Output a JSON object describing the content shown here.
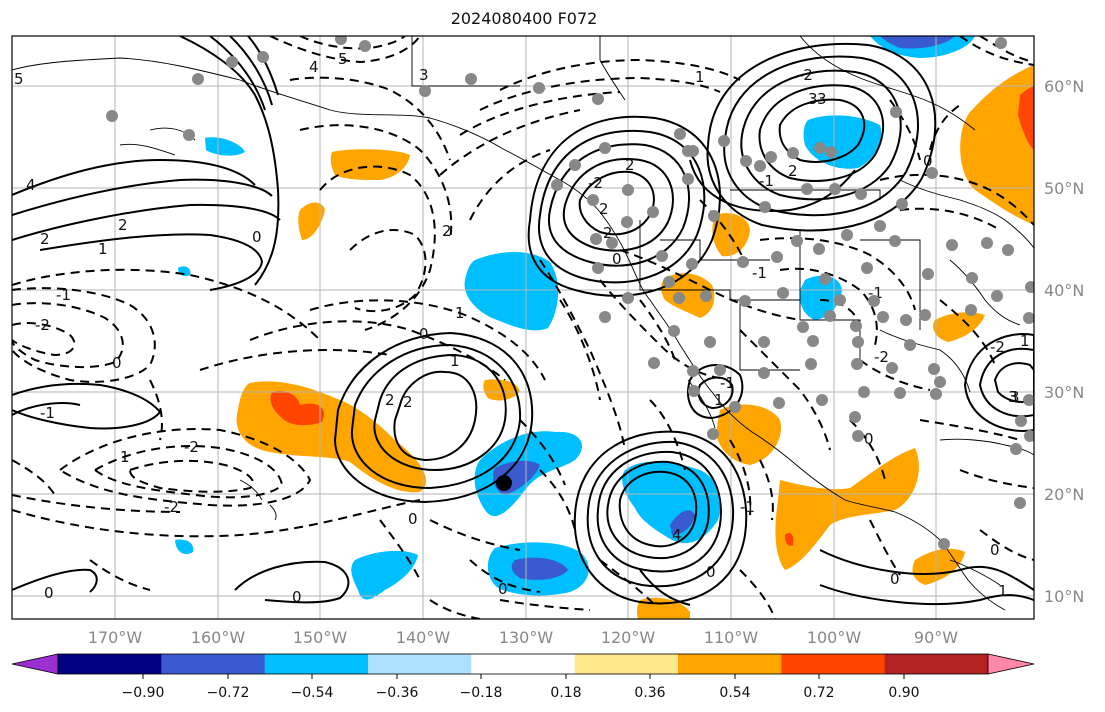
{
  "title": "2024080400 F072",
  "lon_labels": [
    "170°W",
    "160°W",
    "150°W",
    "140°W",
    "130°W",
    "120°W",
    "110°W",
    "100°W",
    "90°W"
  ],
  "lat_labels": [
    "60°N",
    "50°N",
    "40°N",
    "30°N",
    "20°N",
    "10°N"
  ],
  "colorbar": {
    "ticks": [
      "−0.90",
      "−0.72",
      "−0.54",
      "−0.36",
      "−0.18",
      "0.18",
      "0.36",
      "0.54",
      "0.72",
      "0.90"
    ],
    "colors": [
      "#9b30d0",
      "#000080",
      "#3a5bd0",
      "#00bfff",
      "#aee1ff",
      "#ffffff",
      "#ffe98a",
      "#ffa500",
      "#ff4500",
      "#b22222",
      "#ff88aa"
    ]
  },
  "contour_labels": [
    "5",
    "4",
    "2",
    "1",
    "0",
    "-2",
    "-1",
    "2",
    "0",
    "1",
    "2",
    "-2",
    "-1",
    "-2",
    "0",
    "3",
    "4",
    "5",
    "3",
    "0",
    "1",
    "2",
    "2",
    "2",
    "-1",
    "2",
    "1",
    "2",
    "3",
    "0",
    "-2",
    "1",
    "0",
    "0",
    "1",
    "2",
    "0",
    "-1",
    "0",
    "-2",
    "-1",
    "-1",
    "0",
    "-2",
    "1",
    "0",
    "-1",
    "0",
    "1",
    "-2",
    "3",
    "0",
    "4",
    "3"
  ],
  "marker": "storm-center-marker"
}
